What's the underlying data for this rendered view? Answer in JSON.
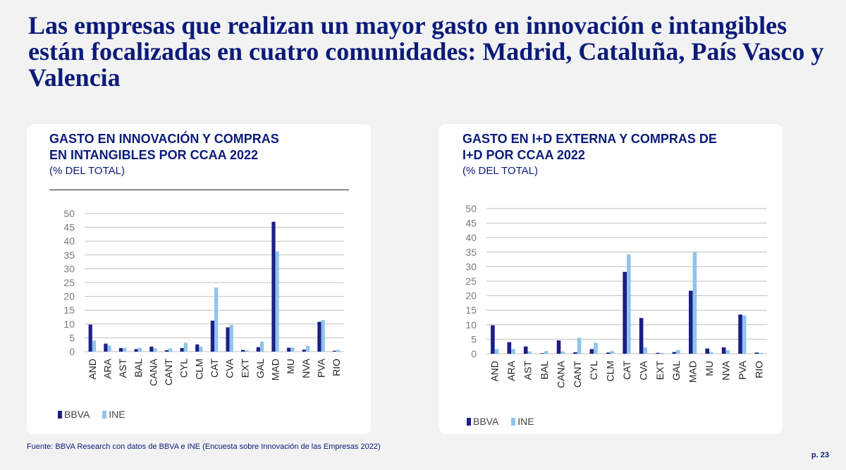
{
  "headline": "Las empresas que realizan un mayor gasto en innovación e intangibles están focalizadas en cuatro comunidades: Madrid, Cataluña, País Vasco y Valencia",
  "colors": {
    "bbva": "#1b1f86",
    "ine": "#8ec4ec",
    "grid": "#bfbfbf",
    "axis_text": "#7a7a7a",
    "title": "#0b1b7a"
  },
  "chart_data": [
    {
      "type": "bar",
      "title": "GASTO EN INNOVACIÓN Y COMPRAS EN INTANGIBLES POR CCAA 2022",
      "title_lines": [
        "GASTO EN INNOVACIÓN Y COMPRAS",
        "EN INTANGIBLES POR CCAA 2022"
      ],
      "subtitle": "(% DEL TOTAL)",
      "ylim": [
        0,
        50
      ],
      "yticks": [
        0,
        5,
        10,
        15,
        20,
        25,
        30,
        35,
        40,
        45,
        50
      ],
      "grid": true,
      "legend_position": "bottom-left",
      "categories": [
        "AND",
        "ARA",
        "AST",
        "BAL",
        "CANA",
        "CANT",
        "CYL",
        "CLM",
        "CAT",
        "CVA",
        "EXT",
        "GAL",
        "MAD",
        "MU",
        "NVA",
        "PVA",
        "RIO"
      ],
      "series": [
        {
          "name": "BBVA",
          "values": [
            9.8,
            2.9,
            1.3,
            0.9,
            1.8,
            0.5,
            1.3,
            2.6,
            11.2,
            8.8,
            0.6,
            1.6,
            47.0,
            1.4,
            0.7,
            10.8,
            0.3
          ]
        },
        {
          "name": "INE",
          "values": [
            4.0,
            2.2,
            1.4,
            1.4,
            1.2,
            1.2,
            3.2,
            1.8,
            23.2,
            9.7,
            0.5,
            3.6,
            36.3,
            1.5,
            2.1,
            11.4,
            0.6
          ]
        }
      ]
    },
    {
      "type": "bar",
      "title": "GASTO EN I+D EXTERNA Y COMPRAS DE I+D POR CCAA 2022",
      "title_lines": [
        "GASTO EN I+D EXTERNA Y COMPRAS DE",
        "I+D POR CCAA 2022"
      ],
      "subtitle": "(% DEL TOTAL)",
      "ylim": [
        0,
        50
      ],
      "yticks": [
        0,
        5,
        10,
        15,
        20,
        25,
        30,
        35,
        40,
        45,
        50
      ],
      "grid": true,
      "legend_position": "bottom-left",
      "categories": [
        "AND",
        "ARA",
        "AST",
        "BAL",
        "CANA",
        "CANT",
        "CYL",
        "CLM",
        "CAT",
        "CVA",
        "EXT",
        "GAL",
        "MAD",
        "MU",
        "NVA",
        "PVA",
        "RIO"
      ],
      "series": [
        {
          "name": "BBVA",
          "values": [
            9.8,
            4.0,
            2.5,
            0.2,
            4.6,
            0.5,
            1.6,
            0.4,
            28.2,
            12.3,
            0.3,
            0.6,
            21.7,
            1.8,
            2.2,
            13.5,
            0.4
          ]
        },
        {
          "name": "INE",
          "values": [
            1.6,
            1.6,
            0.8,
            0.9,
            0.8,
            5.5,
            3.8,
            0.9,
            34.2,
            2.2,
            0.3,
            1.3,
            35.0,
            0.6,
            1.2,
            13.2,
            0.3
          ]
        }
      ]
    }
  ],
  "footer": {
    "source": "Fuente: BBVA Research con datos de BBVA e INE (Encuesta sobre Innovación de las Empresas 2022)",
    "page": "p. 23"
  }
}
